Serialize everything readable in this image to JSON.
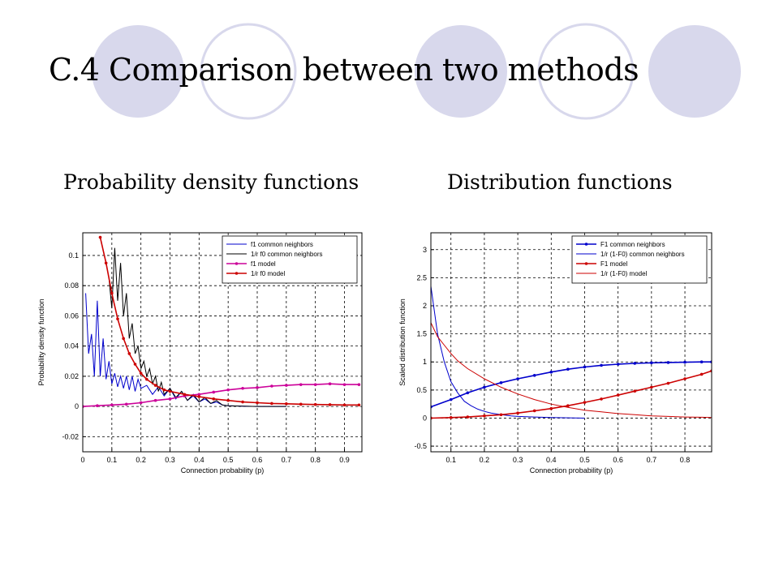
{
  "slide": {
    "title": "C.4 Comparison between two methods",
    "subtitle_left": "Probability density functions",
    "subtitle_right": "Distribution functions",
    "circle_fill": "#d8d8ec",
    "circle_stroke": "#ffffff"
  },
  "chart_data": [
    {
      "type": "line",
      "xlabel": "Connection probability (p)",
      "ylabel": "Probability density function",
      "xlim": [
        0,
        0.96
      ],
      "ylim": [
        -0.03,
        0.115
      ],
      "xticks": [
        "0",
        "0.1",
        "0.2",
        "0.3",
        "0.4",
        "0.5",
        "0.6",
        "0.7",
        "0.8",
        "0.9"
      ],
      "yticks": [
        "-0.02",
        "0",
        "0.02",
        "0.04",
        "0.06",
        "0.08",
        "0.1"
      ],
      "grid": true,
      "legend_position": "top-right",
      "series": [
        {
          "name": "f1  common neighbors",
          "color": "#0000cc",
          "marker": "none",
          "x": [
            0.01,
            0.02,
            0.03,
            0.04,
            0.05,
            0.06,
            0.07,
            0.08,
            0.09,
            0.1,
            0.11,
            0.12,
            0.13,
            0.14,
            0.15,
            0.16,
            0.17,
            0.18,
            0.19,
            0.2,
            0.22,
            0.24,
            0.26,
            0.28,
            0.3,
            0.32,
            0.34,
            0.36,
            0.38,
            0.4,
            0.42,
            0.44,
            0.46,
            0.48,
            0.5,
            0.55,
            0.6,
            0.65,
            0.7
          ],
          "values": [
            0.075,
            0.035,
            0.048,
            0.02,
            0.07,
            0.02,
            0.045,
            0.018,
            0.03,
            0.015,
            0.022,
            0.013,
            0.02,
            0.012,
            0.02,
            0.011,
            0.02,
            0.01,
            0.018,
            0.012,
            0.014,
            0.008,
            0.013,
            0.007,
            0.012,
            0.005,
            0.01,
            0.004,
            0.007,
            0.003,
            0.005,
            0.002,
            0.003,
            0.001,
            0.0005,
            0.0002,
            0.0,
            0.0,
            0.0
          ]
        },
        {
          "name": "1/r  f0  common neighbors",
          "color": "#000000",
          "marker": "none",
          "x": [
            0.09,
            0.1,
            0.11,
            0.12,
            0.13,
            0.14,
            0.15,
            0.16,
            0.17,
            0.18,
            0.19,
            0.2,
            0.21,
            0.22,
            0.23,
            0.24,
            0.25,
            0.26,
            0.27,
            0.28,
            0.3,
            0.32,
            0.34,
            0.36,
            0.38,
            0.4,
            0.42,
            0.44,
            0.46,
            0.48,
            0.5,
            0.55,
            0.6,
            0.65,
            0.7
          ],
          "values": [
            0.085,
            0.065,
            0.105,
            0.07,
            0.095,
            0.06,
            0.075,
            0.045,
            0.055,
            0.035,
            0.04,
            0.025,
            0.03,
            0.02,
            0.025,
            0.015,
            0.02,
            0.01,
            0.016,
            0.008,
            0.012,
            0.006,
            0.01,
            0.004,
            0.008,
            0.003,
            0.006,
            0.002,
            0.004,
            0.001,
            0.0005,
            0.0002,
            0.0,
            0.0,
            0.0
          ]
        },
        {
          "name": "f1  model",
          "color": "#cc0099",
          "marker": "point",
          "x": [
            0.0,
            0.05,
            0.1,
            0.15,
            0.2,
            0.25,
            0.3,
            0.35,
            0.4,
            0.45,
            0.5,
            0.55,
            0.6,
            0.65,
            0.7,
            0.75,
            0.8,
            0.85,
            0.9,
            0.95
          ],
          "values": [
            0.0,
            0.0005,
            0.001,
            0.0015,
            0.0025,
            0.004,
            0.005,
            0.007,
            0.008,
            0.0095,
            0.011,
            0.012,
            0.0125,
            0.0135,
            0.014,
            0.0145,
            0.0145,
            0.015,
            0.0145,
            0.0145
          ]
        },
        {
          "name": "1/r  f0  model",
          "color": "#cc0000",
          "marker": "point",
          "x": [
            0.06,
            0.08,
            0.1,
            0.12,
            0.14,
            0.16,
            0.18,
            0.2,
            0.22,
            0.25,
            0.28,
            0.3,
            0.35,
            0.4,
            0.45,
            0.5,
            0.55,
            0.6,
            0.65,
            0.7,
            0.75,
            0.8,
            0.85,
            0.9,
            0.95
          ],
          "values": [
            0.112,
            0.095,
            0.075,
            0.058,
            0.045,
            0.035,
            0.028,
            0.022,
            0.018,
            0.014,
            0.011,
            0.01,
            0.008,
            0.0065,
            0.005,
            0.004,
            0.003,
            0.0025,
            0.002,
            0.0018,
            0.0015,
            0.0013,
            0.0012,
            0.001,
            0.001
          ]
        }
      ]
    },
    {
      "type": "line",
      "xlabel": "Connection probability (p)",
      "ylabel": "Scaled distribution function",
      "xlim": [
        0.04,
        0.88
      ],
      "ylim": [
        -0.6,
        3.3
      ],
      "xticks": [
        "0.1",
        "0.2",
        "0.3",
        "0.4",
        "0.5",
        "0.6",
        "0.7",
        "0.8"
      ],
      "yticks": [
        "-0.5",
        "0",
        "0.5",
        "1",
        "1.5",
        "2",
        "2.5",
        "3"
      ],
      "grid": true,
      "legend_position": "top-right",
      "series": [
        {
          "name": "F1 common neighbors",
          "color": "#0000cc",
          "marker": "point",
          "x": [
            0.04,
            0.1,
            0.15,
            0.2,
            0.25,
            0.3,
            0.35,
            0.4,
            0.45,
            0.5,
            0.55,
            0.6,
            0.65,
            0.7,
            0.75,
            0.8,
            0.85,
            0.88
          ],
          "values": [
            0.2,
            0.33,
            0.45,
            0.55,
            0.63,
            0.7,
            0.76,
            0.82,
            0.87,
            0.91,
            0.94,
            0.96,
            0.975,
            0.985,
            0.99,
            0.995,
            1.0,
            1.0
          ]
        },
        {
          "name": "1/r (1-F0) common neighbors",
          "color": "#0000cc",
          "marker": "none",
          "x": [
            0.04,
            0.06,
            0.08,
            0.1,
            0.12,
            0.14,
            0.16,
            0.18,
            0.2,
            0.22,
            0.25,
            0.28,
            0.3,
            0.35,
            0.4,
            0.45,
            0.5
          ],
          "values": [
            2.35,
            1.5,
            1.0,
            0.65,
            0.45,
            0.3,
            0.22,
            0.16,
            0.12,
            0.09,
            0.06,
            0.04,
            0.03,
            0.02,
            0.01,
            0.005,
            0.0
          ]
        },
        {
          "name": "F1 model",
          "color": "#cc0000",
          "marker": "point",
          "x": [
            0.04,
            0.1,
            0.15,
            0.2,
            0.25,
            0.3,
            0.35,
            0.4,
            0.45,
            0.5,
            0.55,
            0.6,
            0.65,
            0.7,
            0.75,
            0.8,
            0.85,
            0.88
          ],
          "values": [
            0.0,
            0.01,
            0.02,
            0.04,
            0.06,
            0.09,
            0.13,
            0.17,
            0.22,
            0.28,
            0.34,
            0.41,
            0.48,
            0.55,
            0.62,
            0.7,
            0.78,
            0.84
          ]
        },
        {
          "name": "1/r (1-F0) model",
          "color": "#cc0000",
          "marker": "none",
          "x": [
            0.04,
            0.06,
            0.08,
            0.1,
            0.12,
            0.15,
            0.2,
            0.25,
            0.3,
            0.35,
            0.4,
            0.45,
            0.5,
            0.55,
            0.6,
            0.65,
            0.7,
            0.75,
            0.8,
            0.85,
            0.88
          ],
          "values": [
            1.7,
            1.45,
            1.3,
            1.15,
            1.02,
            0.88,
            0.7,
            0.55,
            0.43,
            0.33,
            0.25,
            0.19,
            0.14,
            0.11,
            0.08,
            0.06,
            0.04,
            0.03,
            0.02,
            0.015,
            0.01
          ]
        }
      ]
    }
  ]
}
